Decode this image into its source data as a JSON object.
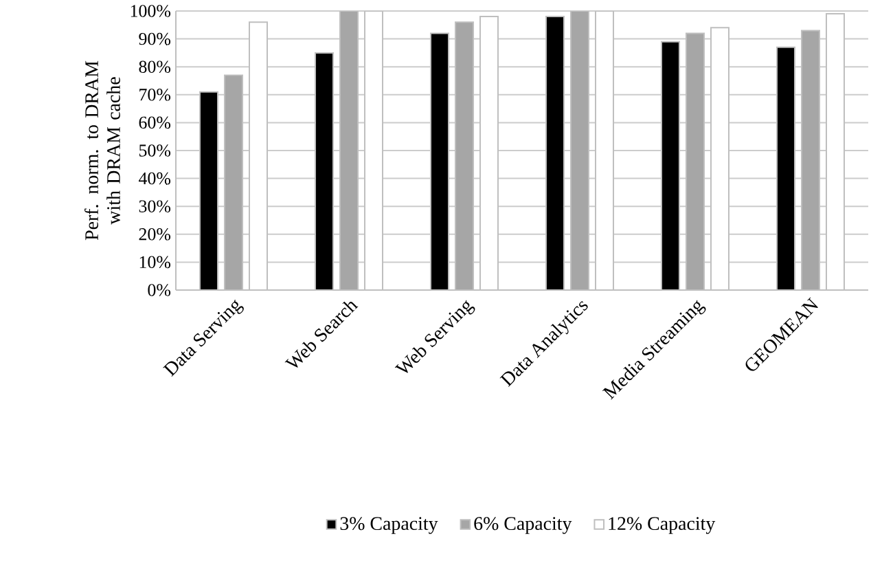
{
  "chart_data": {
    "type": "bar",
    "ylabel": "Perf. norm. to DRAM with DRAM cache",
    "categories": [
      "Data Serving",
      "Web Search",
      "Web Serving",
      "Data Analytics",
      "Media Streaming",
      "GEOMEAN"
    ],
    "series": [
      {
        "name": "3% Capacity",
        "color": "#000000",
        "values": [
          71,
          85,
          92,
          98,
          89,
          87
        ]
      },
      {
        "name": "6% Capacity",
        "color": "#a6a6a6",
        "values": [
          77,
          100,
          96,
          100,
          92,
          93
        ]
      },
      {
        "name": "12% Capacity",
        "color": "#ffffff",
        "values": [
          96,
          100,
          98,
          100,
          94,
          99
        ]
      }
    ],
    "ylim": [
      0,
      100
    ],
    "yticks": [
      {
        "value": 0,
        "label": "0%"
      },
      {
        "value": 10,
        "label": "10%"
      },
      {
        "value": 20,
        "label": "20%"
      },
      {
        "value": 30,
        "label": "30%"
      },
      {
        "value": 40,
        "label": "40%"
      },
      {
        "value": 50,
        "label": "50%"
      },
      {
        "value": 60,
        "label": "60%"
      },
      {
        "value": 70,
        "label": "70%"
      },
      {
        "value": 80,
        "label": "80%"
      },
      {
        "value": 90,
        "label": "90%"
      },
      {
        "value": 100,
        "label": "100%"
      }
    ],
    "grid": "y",
    "legend": "bottom"
  }
}
